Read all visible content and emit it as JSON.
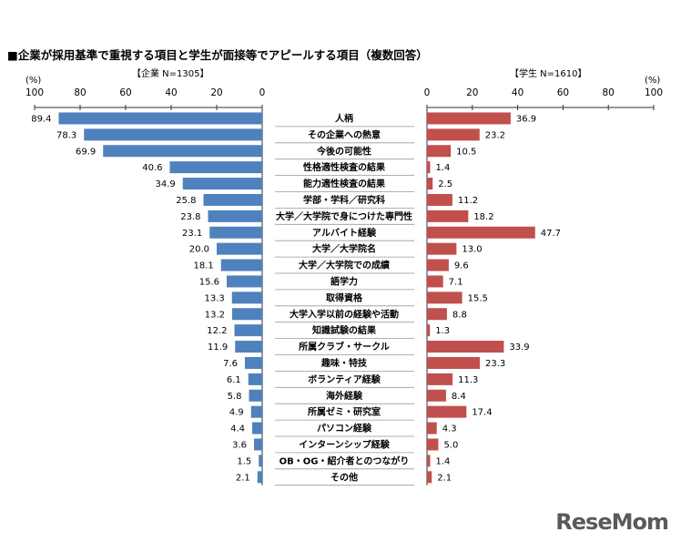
{
  "title": "■企業が採用基準で重視する項目と学生が面接等でアピールする項目（複数回答）",
  "watermark": "ReseMom",
  "chart_data": {
    "type": "bar",
    "orientation": "horizontal",
    "layout": "back-to-back",
    "unit_label": "(%)",
    "categories": [
      "人柄",
      "その企業への熱意",
      "今後の可能性",
      "性格適性検査の結果",
      "能力適性検査の結果",
      "学部・学科／研究科",
      "大学／大学院で身につけた専門性",
      "アルバイト経験",
      "大学／大学院名",
      "大学／大学院での成績",
      "語学力",
      "取得資格",
      "大学入学以前の経験や活動",
      "知識試験の結果",
      "所属クラブ・サークル",
      "趣味・特技",
      "ボランティア経験",
      "海外経験",
      "所属ゼミ・研究室",
      "パソコン経験",
      "インターンシップ経験",
      "OB・OG・紹介者とのつながり",
      "その他"
    ],
    "series": [
      {
        "name": "【企業 N=1305】",
        "color": "#4f81bd",
        "values": [
          89.4,
          78.3,
          69.9,
          40.6,
          34.9,
          25.8,
          23.8,
          23.1,
          20.0,
          18.1,
          15.6,
          13.3,
          13.2,
          12.2,
          11.9,
          7.6,
          6.1,
          5.8,
          4.9,
          4.4,
          3.6,
          1.5,
          2.1
        ],
        "value_labels": [
          "89.4",
          "78.3",
          "69.9",
          "40.6",
          "34.9",
          "25.8",
          "23.8",
          "23.1",
          "20.0",
          "18.1",
          "15.6",
          "13.3",
          "13.2",
          "12.2",
          "11.9",
          "7.6",
          "6.1",
          "5.8",
          "4.9",
          "4.4",
          "3.6",
          "1.5",
          "2.1"
        ]
      },
      {
        "name": "【学生 N=1610】",
        "color": "#c0504d",
        "values": [
          36.9,
          23.2,
          10.5,
          1.4,
          2.5,
          11.2,
          18.2,
          47.7,
          13.0,
          9.6,
          7.1,
          15.5,
          8.8,
          1.3,
          33.9,
          23.3,
          11.3,
          8.4,
          17.4,
          4.3,
          5.0,
          1.4,
          2.1
        ],
        "value_labels": [
          "36.9",
          "23.2",
          "10.5",
          "1.4",
          "2.5",
          "11.2",
          "18.2",
          "47.7",
          "13.0",
          "9.6",
          "7.1",
          "15.5",
          "8.8",
          "1.3",
          "33.9",
          "23.3",
          "11.3",
          "8.4",
          "17.4",
          "4.3",
          "5.0",
          "1.4",
          "2.1"
        ]
      }
    ],
    "left_axis_ticks": [
      "100",
      "80",
      "60",
      "40",
      "20",
      "0"
    ],
    "right_axis_ticks": [
      "0",
      "20",
      "40",
      "60",
      "80",
      "100"
    ],
    "xlim": [
      0,
      100
    ],
    "grid": false
  }
}
